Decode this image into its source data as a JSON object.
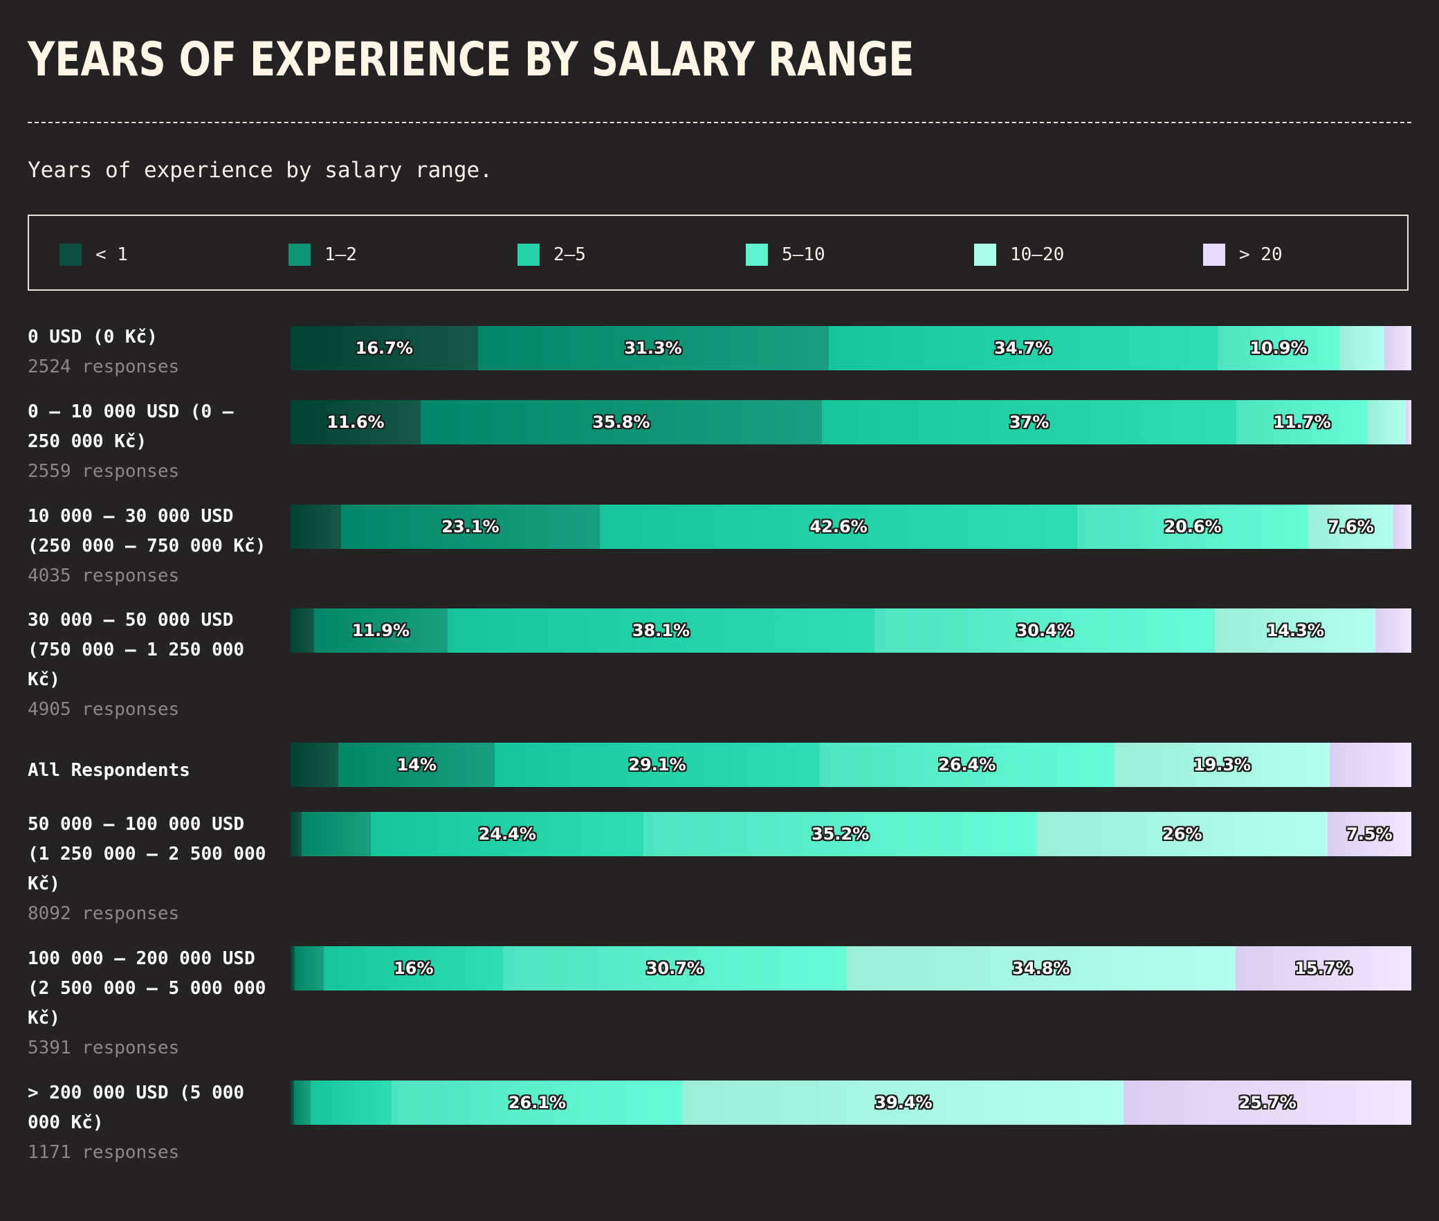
{
  "header": {
    "title": "YEARS OF EXPERIENCE BY SALARY RANGE",
    "subtitle": "Years of experience by salary range."
  },
  "chart_data": {
    "type": "bar",
    "orientation": "horizontal",
    "stacked": "100%",
    "title": "YEARS OF EXPERIENCE BY SALARY RANGE",
    "subtitle": "Years of experience by salary range.",
    "legend_position": "top",
    "series": [
      {
        "name": "< 1",
        "color": "#0c4f3f"
      },
      {
        "name": "1–2",
        "color": "#119475"
      },
      {
        "name": "2–5",
        "color": "#25d3a9"
      },
      {
        "name": "5–10",
        "color": "#5cf2cd"
      },
      {
        "name": "10–20",
        "color": "#a9fde6"
      },
      {
        "name": "> 20",
        "color": "#e9dcff"
      }
    ],
    "rows": [
      {
        "category": "0 USD (0 Kč)",
        "responses": "2524 responses",
        "values": [
          16.7,
          31.3,
          34.7,
          10.9,
          4.0,
          2.4
        ],
        "labels": [
          "16.7%",
          "31.3%",
          "34.7%",
          "10.9%",
          "",
          ""
        ]
      },
      {
        "category": "0 – 10 000 USD (0 –\n250 000 Kč)",
        "responses": "2559 responses",
        "values": [
          11.6,
          35.8,
          37,
          11.7,
          3.4,
          0.5
        ],
        "labels": [
          "11.6%",
          "35.8%",
          "37%",
          "11.7%",
          "",
          ""
        ]
      },
      {
        "category": "10 000 – 30 000 USD\n(250 000 – 750 000 Kč)",
        "responses": "4035 responses",
        "values": [
          4.5,
          23.1,
          42.6,
          20.6,
          7.6,
          1.6
        ],
        "labels": [
          "",
          "23.1%",
          "42.6%",
          "20.6%",
          "7.6%",
          ""
        ]
      },
      {
        "category": "30 000 – 50 000 USD\n(750 000 – 1 250 000\nKč)",
        "responses": "4905 responses",
        "values": [
          2.1,
          11.9,
          38.1,
          30.4,
          14.3,
          3.2
        ],
        "labels": [
          "",
          "11.9%",
          "38.1%",
          "30.4%",
          "14.3%",
          ""
        ]
      },
      {
        "category": "All Respondents",
        "responses": "",
        "values": [
          4.3,
          14,
          29.1,
          26.4,
          19.3,
          7.3
        ],
        "labels": [
          "",
          "14%",
          "29.1%",
          "26.4%",
          "19.3%",
          ""
        ]
      },
      {
        "category": "50 000 – 100 000 USD\n(1 250 000 – 2 500 000\nKč)",
        "responses": "8092 responses",
        "values": [
          1.0,
          6.2,
          24.4,
          35.2,
          26,
          7.5
        ],
        "labels": [
          "",
          "",
          "24.4%",
          "35.2%",
          "26%",
          "7.5%"
        ]
      },
      {
        "category": "100 000 – 200 000 USD\n(2 500 000 – 5 000 000\nKč)",
        "responses": "5391 responses",
        "values": [
          0.4,
          2.6,
          16,
          30.7,
          34.8,
          15.7
        ],
        "labels": [
          "",
          "",
          "16%",
          "30.7%",
          "34.8%",
          "15.7%"
        ]
      },
      {
        "category": "> 200 000 USD (5 000\n000 Kč)",
        "responses": "1171 responses",
        "values": [
          0.3,
          1.5,
          7.2,
          26.1,
          39.4,
          25.7
        ],
        "labels": [
          "",
          "",
          "",
          "26.1%",
          "39.4%",
          "25.7%"
        ]
      }
    ]
  }
}
